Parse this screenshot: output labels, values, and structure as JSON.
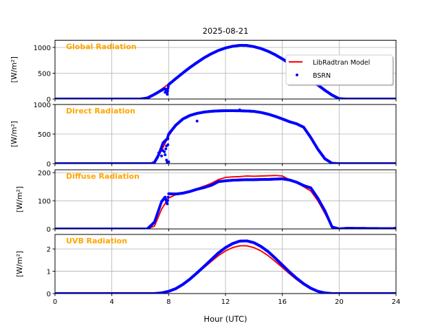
{
  "chart_data": {
    "type": "line",
    "title": "2025-08-21",
    "xlabel": "Hour (UTC)",
    "xlim": [
      0,
      24
    ],
    "xticks": [
      0,
      4,
      8,
      12,
      16,
      20,
      24
    ],
    "grid": true,
    "legend": {
      "placement": "top-right of first panel",
      "entries": [
        {
          "label": "LibRadtran Model",
          "color": "#ff0000",
          "style": "line"
        },
        {
          "label": "BSRN",
          "color": "#0000ff",
          "style": "dots"
        }
      ]
    },
    "panels": [
      {
        "name": "Global Radiation",
        "ylabel": "[W/m²]",
        "ylim": [
          0,
          1140
        ],
        "yticks": [
          0,
          500,
          1000
        ],
        "model": [
          [
            0,
            0
          ],
          [
            6,
            0
          ],
          [
            6.5,
            19
          ],
          [
            7,
            95
          ],
          [
            7.5,
            190
          ],
          [
            8,
            292
          ],
          [
            8.5,
            400
          ],
          [
            9,
            509
          ],
          [
            9.5,
            614
          ],
          [
            10,
            711
          ],
          [
            10.5,
            800
          ],
          [
            11,
            877
          ],
          [
            11.5,
            941
          ],
          [
            12,
            990
          ],
          [
            12.5,
            1022
          ],
          [
            13,
            1039
          ],
          [
            13.5,
            1037
          ],
          [
            14,
            1017
          ],
          [
            14.5,
            981
          ],
          [
            15,
            930
          ],
          [
            15.5,
            863
          ],
          [
            16,
            782
          ],
          [
            16.5,
            692
          ],
          [
            17,
            592
          ],
          [
            17.5,
            487
          ],
          [
            18,
            379
          ],
          [
            18.5,
            274
          ],
          [
            19,
            170
          ],
          [
            19.5,
            78
          ],
          [
            20,
            7
          ],
          [
            20.5,
            0
          ],
          [
            24,
            0
          ]
        ],
        "bsrn": [
          [
            0,
            0
          ],
          [
            6,
            0
          ],
          [
            6.5,
            19
          ],
          [
            7,
            90
          ],
          [
            7.5,
            170
          ],
          [
            7.7,
            200
          ],
          [
            7.8,
            190
          ],
          [
            7.9,
            100
          ],
          [
            7.95,
            200
          ],
          [
            8,
            280
          ],
          [
            8.5,
            395
          ],
          [
            9,
            505
          ],
          [
            9.5,
            612
          ],
          [
            10,
            708
          ],
          [
            10.5,
            800
          ],
          [
            11,
            877
          ],
          [
            11.5,
            941
          ],
          [
            12,
            990
          ],
          [
            12.5,
            1022
          ],
          [
            13,
            1040
          ],
          [
            13.5,
            1038
          ],
          [
            14,
            1015
          ],
          [
            14.5,
            978
          ],
          [
            15,
            925
          ],
          [
            15.5,
            858
          ],
          [
            16,
            778
          ],
          [
            16.5,
            690
          ],
          [
            17,
            590
          ],
          [
            17.5,
            485
          ],
          [
            18,
            378
          ],
          [
            18.5,
            272
          ],
          [
            19,
            168
          ],
          [
            19.5,
            76
          ],
          [
            20,
            6
          ],
          [
            20.5,
            0
          ],
          [
            24,
            0
          ]
        ],
        "bsrn_scatter": [
          [
            7.75,
            130
          ],
          [
            7.85,
            160
          ],
          [
            7.9,
            90
          ],
          [
            9.9,
            690
          ]
        ]
      },
      {
        "name": "Direct Radiation",
        "ylabel": "[W/m²]",
        "ylim": [
          0,
          1000
        ],
        "yticks": [
          0,
          500,
          1000
        ],
        "model": [
          [
            0,
            0
          ],
          [
            6.5,
            0
          ],
          [
            6.8,
            5
          ],
          [
            7,
            40
          ],
          [
            7.5,
            220
          ],
          [
            8,
            470
          ],
          [
            8.5,
            640
          ],
          [
            9,
            750
          ],
          [
            9.5,
            815
          ],
          [
            10,
            850
          ],
          [
            10.5,
            872
          ],
          [
            11,
            885
          ],
          [
            11.5,
            892
          ],
          [
            12,
            895
          ],
          [
            12.5,
            895
          ],
          [
            13,
            894
          ],
          [
            13.5,
            890
          ],
          [
            14,
            884
          ],
          [
            14.5,
            865
          ],
          [
            15,
            837
          ],
          [
            15.5,
            800
          ],
          [
            16,
            756
          ],
          [
            16.5,
            709
          ],
          [
            17,
            674
          ],
          [
            17.5,
            616
          ],
          [
            18,
            442
          ],
          [
            18.5,
            244
          ],
          [
            19,
            81
          ],
          [
            19.5,
            5
          ],
          [
            20,
            0
          ],
          [
            24,
            0
          ]
        ],
        "bsrn": [
          [
            0,
            0
          ],
          [
            6.8,
            0
          ],
          [
            7,
            20
          ],
          [
            7.3,
            150
          ],
          [
            7.6,
            350
          ],
          [
            7.9,
            420
          ],
          [
            8,
            500
          ],
          [
            8.5,
            650
          ],
          [
            9,
            755
          ],
          [
            9.5,
            815
          ],
          [
            10,
            850
          ],
          [
            10.5,
            872
          ],
          [
            11,
            885
          ],
          [
            11.5,
            892
          ],
          [
            12,
            895
          ],
          [
            12.5,
            895
          ],
          [
            13,
            894
          ],
          [
            13.5,
            890
          ],
          [
            14,
            884
          ],
          [
            14.5,
            865
          ],
          [
            15,
            837
          ],
          [
            15.5,
            800
          ],
          [
            16,
            756
          ],
          [
            16.5,
            709
          ],
          [
            17,
            674
          ],
          [
            17.5,
            616
          ],
          [
            18,
            442
          ],
          [
            18.5,
            244
          ],
          [
            19,
            81
          ],
          [
            19.5,
            5
          ],
          [
            20,
            0
          ],
          [
            24,
            0
          ]
        ],
        "bsrn_scatter": [
          [
            7.2,
            100
          ],
          [
            7.3,
            180
          ],
          [
            7.5,
            130
          ],
          [
            7.6,
            220
          ],
          [
            7.7,
            200
          ],
          [
            7.75,
            150
          ],
          [
            7.8,
            250
          ],
          [
            7.85,
            60
          ],
          [
            7.9,
            20
          ],
          [
            7.95,
            420
          ],
          [
            7.95,
            320
          ],
          [
            8,
            30
          ],
          [
            7.85,
            300
          ],
          [
            10,
            720
          ],
          [
            13,
            910
          ]
        ]
      },
      {
        "name": "Diffuse Radiation",
        "ylabel": "[W/m²]",
        "ylim": [
          0,
          210
        ],
        "yticks": [
          0,
          100,
          200
        ],
        "model": [
          [
            0,
            0
          ],
          [
            6.5,
            0
          ],
          [
            7,
            10
          ],
          [
            7.5,
            70
          ],
          [
            8,
            110
          ],
          [
            8.5,
            122
          ],
          [
            9,
            128
          ],
          [
            9.5,
            134
          ],
          [
            10,
            143
          ],
          [
            10.5,
            152
          ],
          [
            11,
            162
          ],
          [
            11.5,
            175
          ],
          [
            12,
            183
          ],
          [
            12.5,
            185
          ],
          [
            13,
            186
          ],
          [
            13.5,
            188
          ],
          [
            14,
            187
          ],
          [
            14.5,
            188
          ],
          [
            15,
            189
          ],
          [
            15.5,
            190
          ],
          [
            16,
            188
          ],
          [
            16.5,
            175
          ],
          [
            17,
            165
          ],
          [
            17.5,
            150
          ],
          [
            18,
            135
          ],
          [
            18.5,
            100
          ],
          [
            19,
            55
          ],
          [
            19.5,
            5
          ],
          [
            20,
            0
          ],
          [
            24,
            0
          ]
        ],
        "bsrn": [
          [
            0,
            0
          ],
          [
            6.5,
            0
          ],
          [
            7,
            24
          ],
          [
            7.5,
            97
          ],
          [
            7.75,
            113
          ],
          [
            7.9,
            89
          ],
          [
            8,
            125
          ],
          [
            8.5,
            124
          ],
          [
            9,
            127
          ],
          [
            9.5,
            133
          ],
          [
            10,
            141
          ],
          [
            10.5,
            147
          ],
          [
            11,
            155
          ],
          [
            11.5,
            168
          ],
          [
            12,
            171
          ],
          [
            12.5,
            173
          ],
          [
            13,
            174
          ],
          [
            13.5,
            175
          ],
          [
            14,
            175
          ],
          [
            15,
            176
          ],
          [
            16,
            178
          ],
          [
            16.5,
            174
          ],
          [
            17,
            166
          ],
          [
            17.5,
            154
          ],
          [
            18,
            146
          ],
          [
            18.5,
            109
          ],
          [
            19,
            64
          ],
          [
            19.5,
            7
          ],
          [
            20,
            0
          ],
          [
            20.5,
            2
          ],
          [
            21,
            2
          ],
          [
            23.8,
            1
          ],
          [
            24,
            3
          ]
        ],
        "bsrn_scatter": []
      },
      {
        "name": "UVB Radiation",
        "ylabel": "[W/m²]",
        "ylim": [
          0,
          2.65
        ],
        "yticks": [
          0,
          1,
          2
        ],
        "model": [
          [
            0,
            0
          ],
          [
            6.8,
            0
          ],
          [
            7.5,
            0.026
          ],
          [
            8,
            0.096
          ],
          [
            8.5,
            0.22
          ],
          [
            9,
            0.4
          ],
          [
            9.5,
            0.63
          ],
          [
            10,
            0.89
          ],
          [
            10.5,
            1.17
          ],
          [
            11,
            1.44
          ],
          [
            11.5,
            1.7
          ],
          [
            12,
            1.91
          ],
          [
            12.5,
            2.06
          ],
          [
            13,
            2.14
          ],
          [
            13.5,
            2.14
          ],
          [
            14,
            2.06
          ],
          [
            14.5,
            1.91
          ],
          [
            15,
            1.7
          ],
          [
            15.5,
            1.44
          ],
          [
            16,
            1.17
          ],
          [
            16.5,
            0.89
          ],
          [
            17,
            0.63
          ],
          [
            17.5,
            0.4
          ],
          [
            18,
            0.22
          ],
          [
            18.5,
            0.096
          ],
          [
            19,
            0.026
          ],
          [
            19.5,
            0
          ],
          [
            24,
            0
          ]
        ],
        "bsrn": [
          [
            0,
            0
          ],
          [
            7,
            0
          ],
          [
            7.5,
            0.03
          ],
          [
            8,
            0.1
          ],
          [
            8.5,
            0.22
          ],
          [
            9,
            0.41
          ],
          [
            9.5,
            0.65
          ],
          [
            10,
            0.93
          ],
          [
            10.5,
            1.22
          ],
          [
            11,
            1.52
          ],
          [
            11.5,
            1.82
          ],
          [
            12,
            2.06
          ],
          [
            12.5,
            2.24
          ],
          [
            13,
            2.35
          ],
          [
            13.5,
            2.36
          ],
          [
            14,
            2.28
          ],
          [
            14.5,
            2.11
          ],
          [
            15,
            1.88
          ],
          [
            15.5,
            1.59
          ],
          [
            16,
            1.28
          ],
          [
            16.5,
            0.97
          ],
          [
            17,
            0.69
          ],
          [
            17.5,
            0.44
          ],
          [
            18,
            0.24
          ],
          [
            18.5,
            0.1
          ],
          [
            19,
            0.03
          ],
          [
            19.5,
            0
          ],
          [
            24,
            0
          ]
        ],
        "bsrn_scatter": []
      }
    ]
  }
}
